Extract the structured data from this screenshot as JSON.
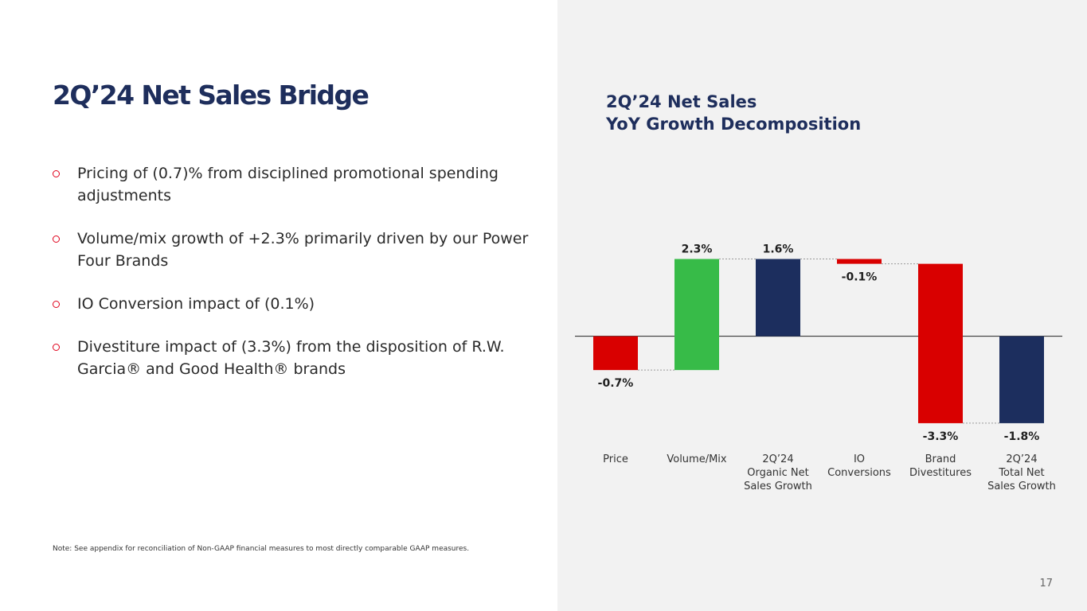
{
  "slide": {
    "title": "2Q’24 Net Sales Bridge",
    "page_number": "17",
    "note": "Note: See appendix for reconciliation of Non-GAAP financial measures to most directly comparable GAAP measures."
  },
  "bullets": [
    "Pricing of (0.7)% from disciplined promotional spending adjustments",
    "Volume/mix growth of +2.3% primarily driven by our Power Four Brands",
    "IO Conversion impact of (0.1%)",
    "Divestiture impact of (3.3%) from the disposition of R.W. Garcia® and Good Health® brands"
  ],
  "chart_title": {
    "line1": "2Q’24 Net Sales",
    "line2": "YoY Growth Decomposition"
  },
  "colors": {
    "navy": "#1c2e5e",
    "red": "#d90000",
    "green": "#37bb48",
    "bullet": "#e0001b"
  },
  "chart_data": {
    "type": "waterfall",
    "title": "2Q’24 Net Sales YoY Growth Decomposition",
    "categories": [
      [
        "Price"
      ],
      [
        "Volume/Mix"
      ],
      [
        "2Q’24",
        "Organic Net",
        "Sales Growth"
      ],
      [
        "IO",
        "Conversions"
      ],
      [
        "Brand",
        "Divestitures"
      ],
      [
        "2Q’24",
        "Total Net",
        "Sales Growth"
      ]
    ],
    "values": [
      -0.7,
      2.3,
      1.6,
      -0.1,
      -3.3,
      -1.8
    ],
    "kinds": [
      "delta",
      "delta",
      "total",
      "delta",
      "delta",
      "total"
    ],
    "bar_colors": [
      "red",
      "green",
      "navy",
      "red",
      "red",
      "navy"
    ],
    "labels": [
      "-0.7%",
      "2.3%",
      "1.6%",
      "-0.1%",
      "-3.3%",
      "-1.8%"
    ],
    "ylim": [
      -1.9,
      2.35
    ]
  }
}
